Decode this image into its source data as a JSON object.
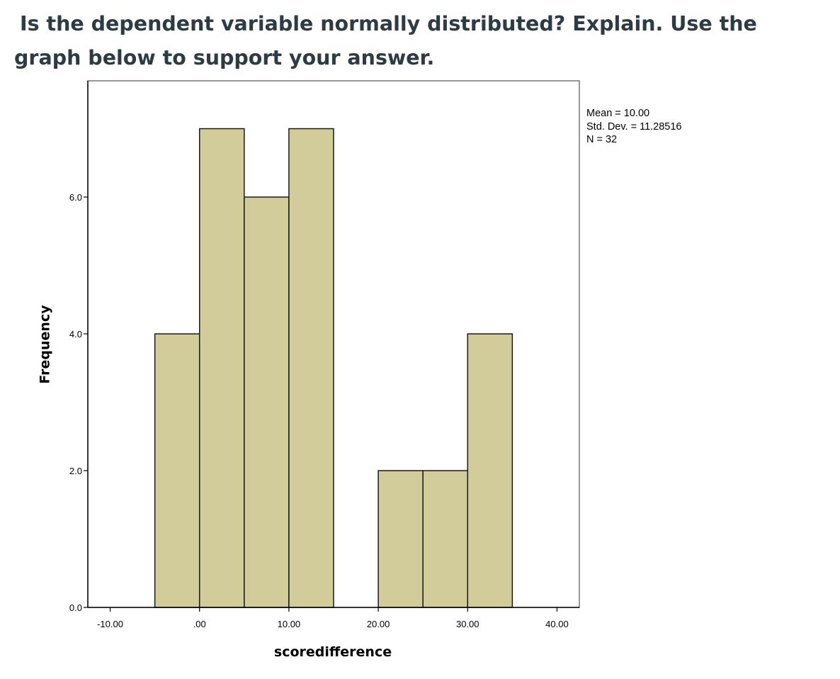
{
  "question": "Is the dependent variable normally distributed? Explain.  Use the graph below to support your answer.",
  "chart_data": {
    "type": "bar",
    "subtype": "histogram",
    "xlabel": "scoredifference",
    "ylabel": "Frequency",
    "x_tick_labels": [
      "-10.00",
      ".00",
      "10.00",
      "20.00",
      "30.00",
      "40.00"
    ],
    "x_ticks": [
      -10,
      0,
      10,
      20,
      30,
      40
    ],
    "y_tick_labels": [
      "0.0",
      "2.0",
      "4.0",
      "6.0"
    ],
    "y_ticks": [
      0,
      2,
      4,
      6
    ],
    "xlim": [
      -12.5,
      42.5
    ],
    "ylim": [
      0,
      7.7
    ],
    "bins": [
      {
        "start": -5,
        "end": 0,
        "count": 4
      },
      {
        "start": 0,
        "end": 5,
        "count": 7
      },
      {
        "start": 5,
        "end": 10,
        "count": 6
      },
      {
        "start": 10,
        "end": 15,
        "count": 7
      },
      {
        "start": 15,
        "end": 20,
        "count": 0
      },
      {
        "start": 20,
        "end": 25,
        "count": 2
      },
      {
        "start": 25,
        "end": 30,
        "count": 2
      },
      {
        "start": 30,
        "end": 35,
        "count": 4
      }
    ],
    "bar_color": "#d2cc9b",
    "bar_stroke": "#1a1a1a",
    "legend_position": "top-right",
    "stats": {
      "mean": "Mean = 10.00",
      "std_dev": "Std. Dev. = 11.28516",
      "n": "N = 32"
    },
    "grid": false
  }
}
